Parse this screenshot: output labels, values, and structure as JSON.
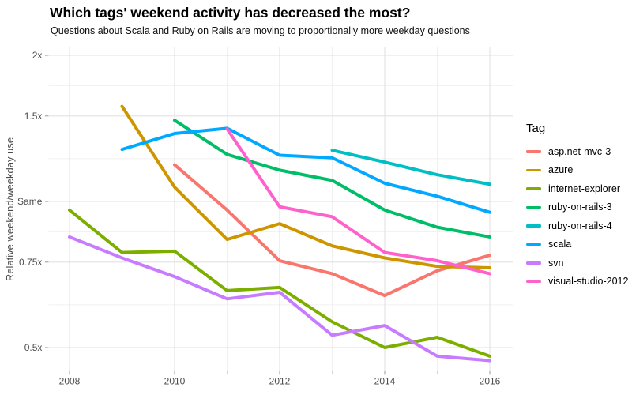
{
  "chart_data": {
    "type": "line",
    "title": "Which tags' weekend activity has decreased the most?",
    "subtitle": "Questions about Scala and Ruby on Rails are moving to proportionally more weekday questions",
    "ylabel": "Relative weekend/weekday use",
    "legend_title": "Tag",
    "legend_position": "right",
    "grid": true,
    "y_scale": "log2",
    "x_major_ticks": [
      2008,
      2010,
      2012,
      2014,
      2016
    ],
    "x_minor_ticks": [
      2009,
      2011,
      2013,
      2015
    ],
    "x_range": [
      2007.6,
      2016.45
    ],
    "y_major_ticks": [
      {
        "value": 2,
        "label": "2x"
      },
      {
        "value": 1.5,
        "label": "1.5x"
      },
      {
        "value": 1,
        "label": "Same"
      },
      {
        "value": 0.75,
        "label": "0.75x"
      },
      {
        "value": 0.5,
        "label": "0.5x"
      }
    ],
    "y_range": [
      0.447,
      2.08
    ],
    "series": [
      {
        "name": "asp.net-mvc-3",
        "color": "#F8766D",
        "points": [
          [
            2010,
            1.19
          ],
          [
            2011,
            0.96
          ],
          [
            2012,
            0.755
          ],
          [
            2013,
            0.71
          ],
          [
            2014,
            0.64
          ],
          [
            2015,
            0.72
          ],
          [
            2016,
            0.775
          ]
        ]
      },
      {
        "name": "azure",
        "color": "#CD9600",
        "points": [
          [
            2009,
            1.57
          ],
          [
            2010,
            1.07
          ],
          [
            2011,
            0.835
          ],
          [
            2012,
            0.9
          ],
          [
            2013,
            0.81
          ],
          [
            2014,
            0.765
          ],
          [
            2015,
            0.735
          ],
          [
            2016,
            0.73
          ]
        ]
      },
      {
        "name": "internet-explorer",
        "color": "#7CAE00",
        "points": [
          [
            2008,
            0.96
          ],
          [
            2009,
            0.785
          ],
          [
            2010,
            0.79
          ],
          [
            2011,
            0.655
          ],
          [
            2012,
            0.665
          ],
          [
            2013,
            0.565
          ],
          [
            2014,
            0.5
          ],
          [
            2015,
            0.525
          ],
          [
            2016,
            0.48
          ]
        ]
      },
      {
        "name": "ruby-on-rails-3",
        "color": "#00BE67",
        "points": [
          [
            2010,
            1.47
          ],
          [
            2011,
            1.25
          ],
          [
            2012,
            1.16
          ],
          [
            2013,
            1.105
          ],
          [
            2014,
            0.96
          ],
          [
            2015,
            0.885
          ],
          [
            2016,
            0.845
          ]
        ]
      },
      {
        "name": "ruby-on-rails-4",
        "color": "#00BFC4",
        "points": [
          [
            2013,
            1.275
          ],
          [
            2014,
            1.205
          ],
          [
            2015,
            1.135
          ],
          [
            2016,
            1.085
          ]
        ]
      },
      {
        "name": "scala",
        "color": "#00A9FF",
        "points": [
          [
            2009,
            1.28
          ],
          [
            2010,
            1.38
          ],
          [
            2011,
            1.415
          ],
          [
            2012,
            1.245
          ],
          [
            2013,
            1.23
          ],
          [
            2014,
            1.09
          ],
          [
            2015,
            1.025
          ],
          [
            2016,
            0.95
          ]
        ]
      },
      {
        "name": "svn",
        "color": "#C77CFF",
        "points": [
          [
            2008,
            0.845
          ],
          [
            2009,
            0.765
          ],
          [
            2010,
            0.7
          ],
          [
            2011,
            0.63
          ],
          [
            2012,
            0.65
          ],
          [
            2013,
            0.53
          ],
          [
            2014,
            0.555
          ],
          [
            2015,
            0.48
          ],
          [
            2016,
            0.47
          ]
        ]
      },
      {
        "name": "visual-studio-2012",
        "color": "#FF61CC",
        "points": [
          [
            2011,
            1.41
          ],
          [
            2012,
            0.975
          ],
          [
            2013,
            0.93
          ],
          [
            2014,
            0.785
          ],
          [
            2015,
            0.755
          ],
          [
            2016,
            0.71
          ]
        ]
      }
    ]
  }
}
